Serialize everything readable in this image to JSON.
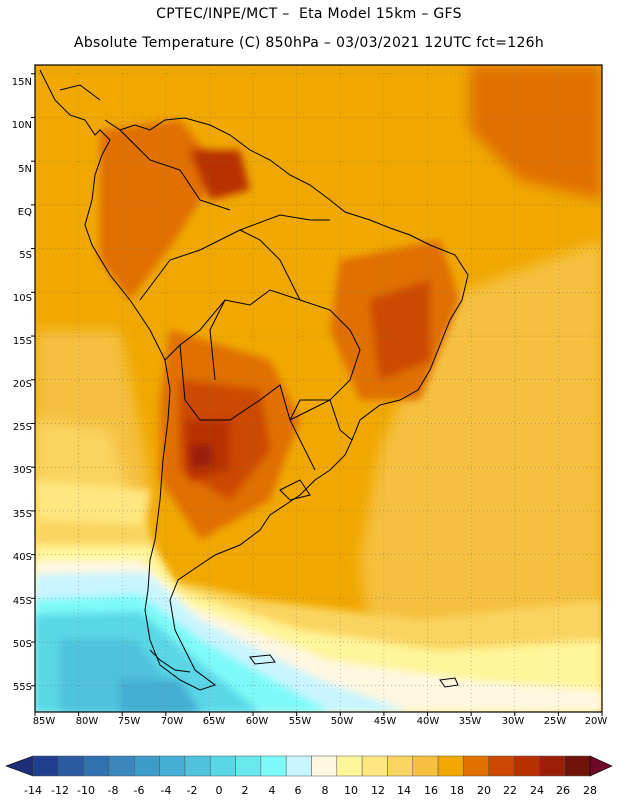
{
  "header": {
    "line1": "CPTEC/INPE/MCT –  Eta Model 15km – GFS",
    "line2": "Absolute Temperature (C) 850hPa – 03/03/2021 12UTC fct=126h"
  },
  "map": {
    "region": "South America",
    "lon_range": [
      -85,
      -20
    ],
    "lat_range": [
      -58,
      16
    ],
    "lat_labels": [
      "15N",
      "10N",
      "5N",
      "EQ",
      "5S",
      "10S",
      "15S",
      "20S",
      "25S",
      "30S",
      "35S",
      "40S",
      "45S",
      "50S",
      "55S"
    ],
    "lon_labels": [
      "85W",
      "80W",
      "75W",
      "70W",
      "65W",
      "60W",
      "55W",
      "50W",
      "45W",
      "40W",
      "35W",
      "30W",
      "25W",
      "20W"
    ]
  },
  "colorbar": {
    "labels": [
      "-14",
      "-12",
      "-10",
      "-8",
      "-6",
      "-4",
      "-2",
      "0",
      "2",
      "4",
      "6",
      "8",
      "10",
      "12",
      "14",
      "16",
      "18",
      "20",
      "22",
      "24",
      "26",
      "28"
    ],
    "colors": [
      "#1f3f8f",
      "#2a5aa0",
      "#3171b0",
      "#3a86bd",
      "#3e9bc8",
      "#45aed3",
      "#4fc2dc",
      "#5ad6e6",
      "#6ae8f0",
      "#7dfaf8",
      "#c8f5ff",
      "#fff7e0",
      "#fff59a",
      "#ffe680",
      "#fad460",
      "#f5c040",
      "#f0a800",
      "#e07000",
      "#cc4a00",
      "#b83000",
      "#9a1e08",
      "#6e1408"
    ],
    "left_arrow_color": "#1e2e78",
    "right_arrow_color": "#6e0a28"
  }
}
